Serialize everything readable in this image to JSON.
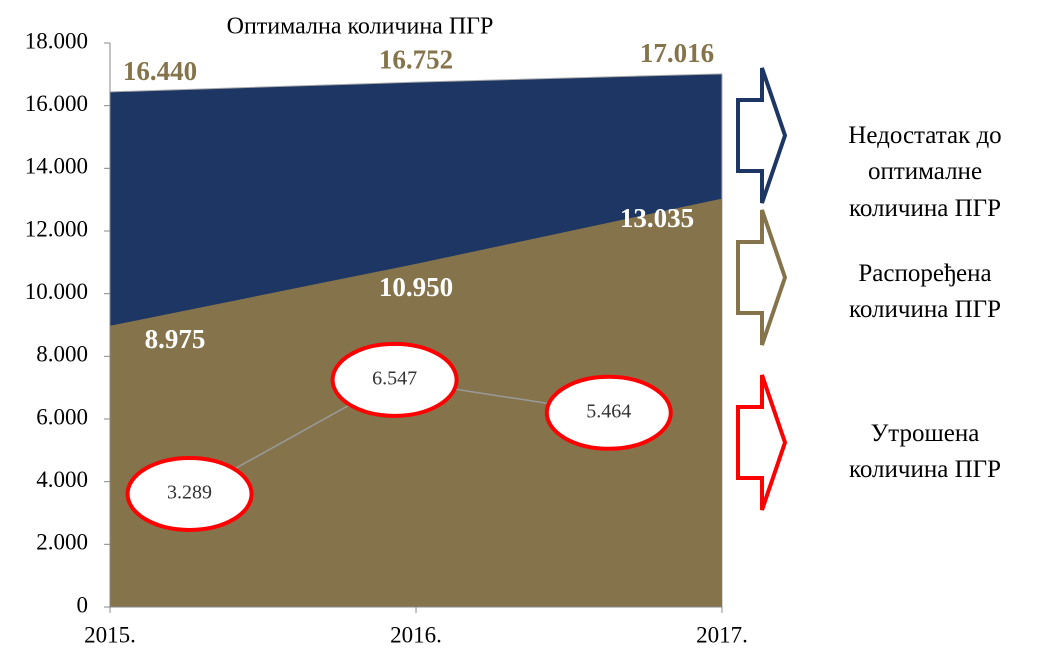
{
  "chart_data": {
    "type": "area",
    "title": "Оптимална количина ПГР",
    "categories": [
      "2015.",
      "2016.",
      "2017."
    ],
    "series": [
      {
        "name": "Недостатак до оптималне количина ПГР",
        "color": "#1d3663",
        "values": [
          16440,
          16752,
          17016
        ],
        "value_labels": [
          "16.440",
          "16.752",
          "17.016"
        ]
      },
      {
        "name": "Распоређена количина ПГР",
        "color": "#85744b",
        "values": [
          8975,
          10950,
          13035
        ],
        "value_labels": [
          "8.975",
          "10.950",
          "13.035"
        ]
      },
      {
        "name": "Утрошена количина ПГР",
        "type": "line",
        "color": "#ff0000",
        "values": [
          3289,
          6547,
          5464
        ],
        "value_labels": [
          "3.289",
          "6.547",
          "5.464"
        ]
      }
    ],
    "ylim": [
      0,
      18000
    ],
    "yticks": [
      0,
      {
        "value": 2000,
        "label": "2.000"
      },
      {
        "value": 4000,
        "label": "4.000"
      },
      {
        "value": 6000,
        "label": "6.000"
      },
      {
        "value": 8000,
        "label": "8.000"
      },
      {
        "value": 10000,
        "label": "10.000"
      },
      {
        "value": 12000,
        "label": "12.000"
      },
      {
        "value": 14000,
        "label": "14.000"
      },
      {
        "value": 16000,
        "label": "16.000"
      },
      {
        "value": 18000,
        "label": "18.000"
      }
    ]
  }
}
